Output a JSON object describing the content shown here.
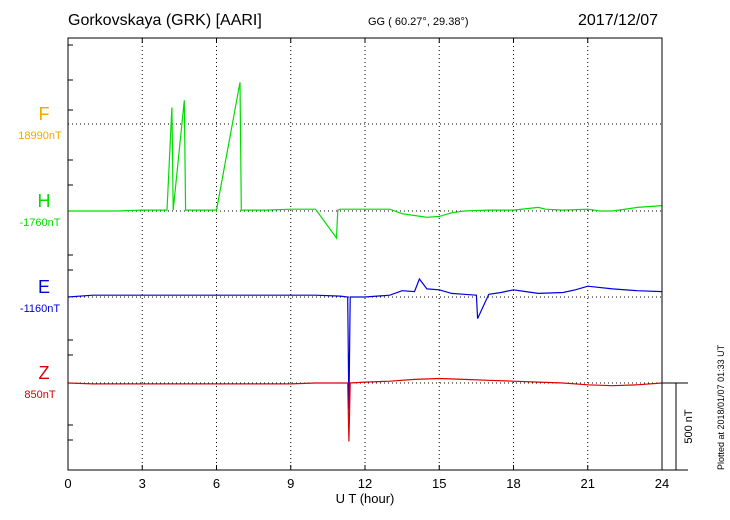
{
  "header": {
    "station": "Gorkovskaya (GRK)  [AARI]",
    "coords": "GG ( 60.27°,  29.38°)",
    "date": "2017/12/07"
  },
  "footnote": "Plotted at 2018/01/07 01:33 UT",
  "chart_data": {
    "type": "line",
    "xlabel": "U T (hour)",
    "xlim": [
      0,
      24
    ],
    "xticks": [
      "0",
      "3",
      "6",
      "9",
      "12",
      "15",
      "18",
      "21",
      "24"
    ],
    "scale_bar_label": "500 nT",
    "grid": true,
    "series": [
      {
        "name": "F",
        "baseline_label": "18990nT",
        "color": "#f4a700",
        "x": [],
        "y": []
      },
      {
        "name": "H",
        "baseline_label": "-1760nT",
        "color": "#00dd00",
        "x": [
          0,
          1,
          2,
          3,
          4,
          4.2,
          4.25,
          4.7,
          4.75,
          6,
          6.95,
          7.0,
          8,
          9,
          10,
          10.85,
          10.9,
          11,
          12,
          13,
          13.5,
          14,
          14.5,
          15,
          15.5,
          16,
          17,
          18,
          19,
          19.3,
          20,
          21,
          21.5,
          22,
          23,
          24
        ],
        "y": [
          0,
          0,
          0,
          5,
          5,
          575,
          5,
          615,
          5,
          5,
          715,
          5,
          5,
          10,
          10,
          -150,
          5,
          10,
          10,
          10,
          -15,
          -25,
          -35,
          -30,
          -10,
          0,
          5,
          5,
          20,
          10,
          5,
          10,
          0,
          0,
          20,
          30
        ]
      },
      {
        "name": "E",
        "baseline_label": "-1160nT",
        "color": "#0000dd",
        "x": [
          0,
          1,
          2,
          3,
          4,
          5,
          6,
          7,
          8,
          9,
          10,
          11,
          11.3,
          11.35,
          11.4,
          12,
          13,
          13.5,
          14,
          14.2,
          14.5,
          15,
          15.5,
          16,
          16.5,
          16.55,
          17,
          17.5,
          18,
          18.5,
          19,
          20,
          20.5,
          21,
          22,
          23,
          24
        ],
        "y": [
          0,
          10,
          10,
          10,
          10,
          10,
          10,
          10,
          10,
          10,
          10,
          5,
          0,
          -625,
          0,
          0,
          10,
          35,
          30,
          100,
          45,
          40,
          20,
          15,
          10,
          -120,
          15,
          25,
          40,
          30,
          20,
          25,
          40,
          60,
          45,
          35,
          30
        ]
      },
      {
        "name": "Z",
        "baseline_label": "850nT",
        "color": "#dd0000",
        "x": [
          0,
          1,
          2,
          3,
          4,
          5,
          6,
          7,
          8,
          9,
          10,
          11,
          11.3,
          11.35,
          11.4,
          12,
          13,
          14,
          15,
          16,
          17,
          18,
          19,
          20,
          21,
          22,
          23,
          24
        ],
        "y": [
          0,
          -5,
          -5,
          -5,
          -5,
          -5,
          -5,
          -5,
          -5,
          -5,
          0,
          0,
          0,
          -325,
          0,
          5,
          10,
          20,
          25,
          20,
          15,
          10,
          5,
          0,
          -10,
          -15,
          -10,
          0
        ]
      }
    ]
  }
}
